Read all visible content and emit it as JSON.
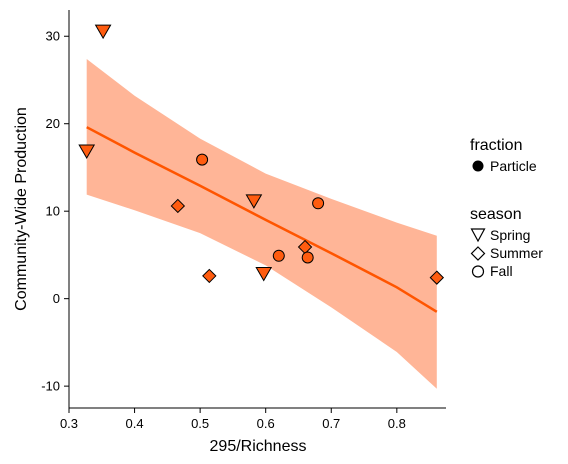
{
  "chart_data": {
    "type": "scatter",
    "xlabel": "295/Richness",
    "ylabel": "Community-Wide Production",
    "xlim": [
      0.3,
      0.875
    ],
    "ylim": [
      -12.5,
      33
    ],
    "x_ticks": [
      0.3,
      0.4,
      0.5,
      0.6,
      0.7,
      0.8
    ],
    "x_tick_labels": [
      "0.3",
      "0.4",
      "0.5",
      "0.6",
      "0.7",
      "0.8"
    ],
    "y_ticks": [
      -10,
      0,
      10,
      20,
      30
    ],
    "y_tick_labels": [
      "-10",
      "0",
      "10",
      "20",
      "30"
    ],
    "grid": false,
    "point_color": "#ff5c0f",
    "trend_color": "#ff5500",
    "band_color": "#ffb597",
    "series": [
      {
        "name": "Spring",
        "shape": "triangle-down",
        "points": [
          {
            "x": 0.352,
            "y": 30.6
          },
          {
            "x": 0.327,
            "y": 16.9
          },
          {
            "x": 0.582,
            "y": 11.2
          },
          {
            "x": 0.597,
            "y": 2.9
          }
        ]
      },
      {
        "name": "Summer",
        "shape": "diamond",
        "points": [
          {
            "x": 0.466,
            "y": 10.6
          },
          {
            "x": 0.514,
            "y": 2.6
          },
          {
            "x": 0.66,
            "y": 5.9
          },
          {
            "x": 0.861,
            "y": 2.4
          }
        ]
      },
      {
        "name": "Fall",
        "shape": "circle",
        "points": [
          {
            "x": 0.503,
            "y": 15.9
          },
          {
            "x": 0.62,
            "y": 4.9
          },
          {
            "x": 0.664,
            "y": 4.7
          },
          {
            "x": 0.68,
            "y": 10.9
          }
        ]
      }
    ],
    "trend": {
      "x": [
        0.327,
        0.4,
        0.5,
        0.6,
        0.7,
        0.8,
        0.861
      ],
      "y": [
        19.6,
        16.7,
        12.9,
        9.0,
        5.2,
        1.3,
        -1.5
      ],
      "upper": [
        27.4,
        23.2,
        18.3,
        14.3,
        11.4,
        8.7,
        7.2
      ],
      "lower": [
        11.9,
        10.1,
        7.5,
        3.8,
        -1.0,
        -6.1,
        -10.3
      ]
    },
    "legend": {
      "placement": "right",
      "fraction": {
        "title": "fraction",
        "items": [
          {
            "label": "Particle",
            "shape": "circle-filled"
          }
        ]
      },
      "season": {
        "title": "season",
        "items": [
          {
            "label": "Spring",
            "shape": "triangle-down"
          },
          {
            "label": "Summer",
            "shape": "diamond"
          },
          {
            "label": "Fall",
            "shape": "circle"
          }
        ]
      }
    }
  }
}
